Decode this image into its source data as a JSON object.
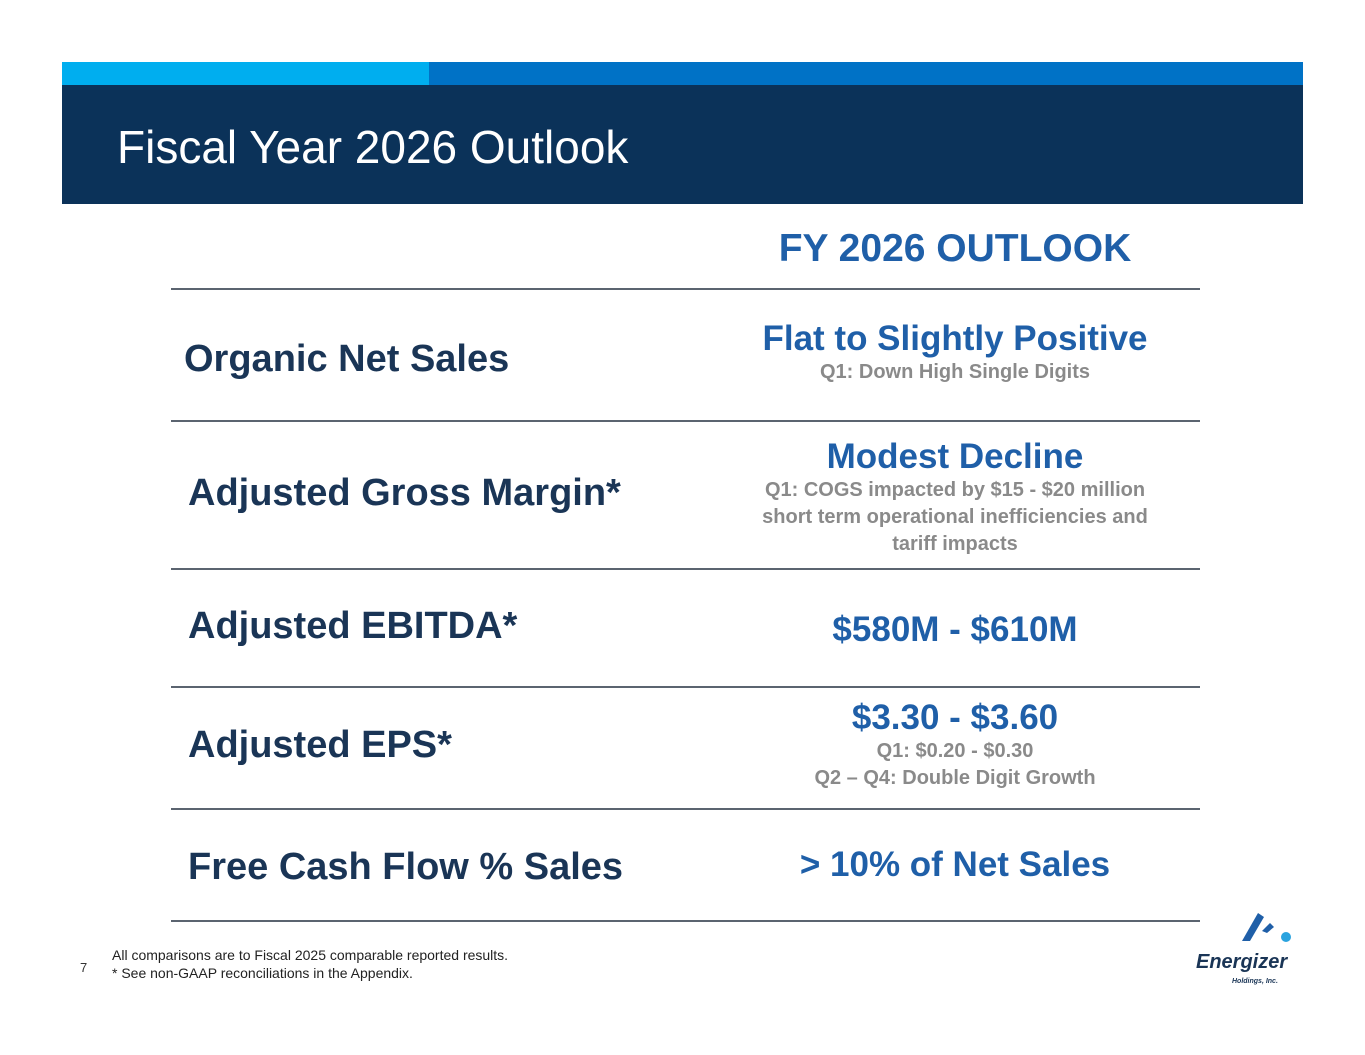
{
  "header": {
    "title": "Fiscal Year 2026 Outlook"
  },
  "table": {
    "column_heading": "FY 2026 OUTLOOK",
    "rows": [
      {
        "label": "Organic Net Sales",
        "value": "Flat to Slightly Positive",
        "notes": [
          "Q1: Down High Single Digits"
        ]
      },
      {
        "label": "Adjusted Gross Margin*",
        "value": "Modest Decline",
        "notes": [
          "Q1: COGS impacted by $15 - $20 million",
          "short term operational inefficiencies and",
          "tariff impacts"
        ]
      },
      {
        "label": "Adjusted EBITDA*",
        "value": "$580M - $610M",
        "notes": []
      },
      {
        "label": "Adjusted EPS*",
        "value": "$3.30 - $3.60",
        "notes": [
          "Q1: $0.20 - $0.30",
          "Q2 – Q4: Double Digit Growth"
        ]
      },
      {
        "label": "Free Cash Flow % Sales",
        "value": "> 10% of Net Sales",
        "notes": []
      }
    ]
  },
  "footer": {
    "page_number": "7",
    "footnotes": [
      "All comparisons are to Fiscal 2025 comparable reported results.",
      "* See non-GAAP reconciliations in the Appendix."
    ]
  },
  "logo": {
    "wordmark": "Energizer",
    "tagline": "Holdings, Inc."
  },
  "colors": {
    "header_band": "#0b3259",
    "accent_light": "#00aeef",
    "accent_mid": "#0072c6",
    "value_blue": "#1f5fa8",
    "label_navy": "#1a3556",
    "note_gray": "#8a8a8a"
  }
}
